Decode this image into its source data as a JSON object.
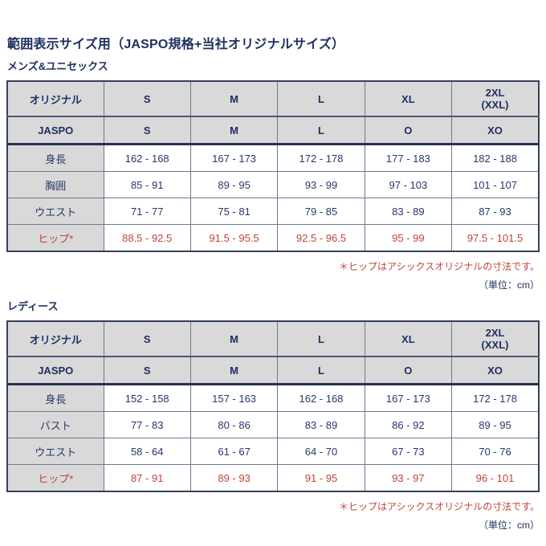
{
  "page": {
    "title": "範囲表示サイズ用（JASPO規格+当社オリジナルサイズ）",
    "hip_note": "＊ヒップはアシックスオリジナルの寸法です。",
    "unit_note": "（単位：cm）"
  },
  "colors": {
    "text_navy": "#1e3060",
    "accent_red": "#c2423a",
    "cell_gray": "#d9d9d9",
    "border_gray_blue": "#6d7790",
    "border_dark_navy": "#333f5e"
  },
  "tables": [
    {
      "section": "メンズ&ユニセックス",
      "header_rows": [
        {
          "label": "オリジナル",
          "values": [
            "S",
            "M",
            "L",
            "XL",
            "2XL\n(XXL)"
          ]
        },
        {
          "label": "JASPO",
          "values": [
            "S",
            "M",
            "L",
            "O",
            "XO"
          ]
        }
      ],
      "rows": [
        {
          "label": "身長",
          "values": [
            "162 - 168",
            "167 - 173",
            "172 - 178",
            "177 - 183",
            "182 - 188"
          ]
        },
        {
          "label": "胸囲",
          "values": [
            "85 - 91",
            "89 - 95",
            "93 - 99",
            "97 - 103",
            "101 - 107"
          ]
        },
        {
          "label": "ウエスト",
          "values": [
            "71 - 77",
            "75 - 81",
            "79 - 85",
            "83 - 89",
            "87 - 93"
          ]
        },
        {
          "label": "ヒップ*",
          "values": [
            "88.5 - 92.5",
            "91.5 - 95.5",
            "92.5 - 96.5",
            "95 - 99",
            "97.5 - 101.5"
          ]
        }
      ]
    },
    {
      "section": "レディース",
      "header_rows": [
        {
          "label": "オリジナル",
          "values": [
            "S",
            "M",
            "L",
            "XL",
            "2XL\n(XXL)"
          ]
        },
        {
          "label": "JASPO",
          "values": [
            "S",
            "M",
            "L",
            "O",
            "XO"
          ]
        }
      ],
      "rows": [
        {
          "label": "身長",
          "values": [
            "152 - 158",
            "157 - 163",
            "162 - 168",
            "167 - 173",
            "172 - 178"
          ]
        },
        {
          "label": "バスト",
          "values": [
            "77 - 83",
            "80 - 86",
            "83 - 89",
            "86 - 92",
            "89 - 95"
          ]
        },
        {
          "label": "ウエスト",
          "values": [
            "58 - 64",
            "61 - 67",
            "64 - 70",
            "67 - 73",
            "70 - 76"
          ]
        },
        {
          "label": "ヒップ*",
          "values": [
            "87 - 91",
            "89 - 93",
            "91 - 95",
            "93 - 97",
            "96 - 101"
          ]
        }
      ]
    }
  ]
}
